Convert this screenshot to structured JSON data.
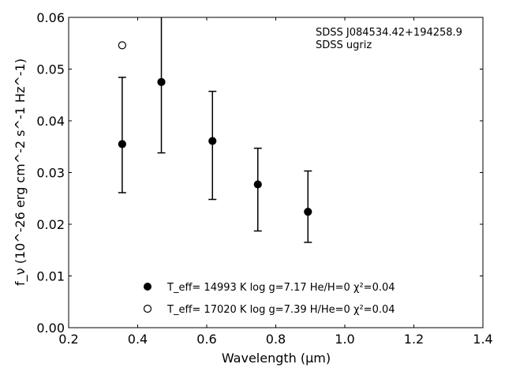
{
  "chart_data": {
    "type": "scatter",
    "xlabel": "Wavelength (μm)",
    "ylabel": "f_ν (10^-26 erg cm^-2 s^-1 Hz^-1)",
    "xlim": [
      0.2,
      1.4
    ],
    "ylim": [
      0.0,
      0.06
    ],
    "xticks": [
      "0.2",
      "0.4",
      "0.6",
      "0.8",
      "1.0",
      "1.2",
      "1.4"
    ],
    "yticks": [
      "0.00",
      "0.01",
      "0.02",
      "0.03",
      "0.04",
      "0.05",
      "0.06"
    ],
    "grid": false,
    "annotations": [
      "SDSS J084534.42+194258.9",
      "SDSS ugriz"
    ],
    "observed": {
      "x": [
        0.3551,
        0.4686,
        0.6166,
        0.748,
        0.8932
      ],
      "y": [
        0.0354,
        0.0475,
        0.036,
        0.0276,
        0.0223
      ],
      "err_low": [
        0.0261,
        0.0338,
        0.0248,
        0.0187,
        0.0165
      ],
      "err_high": [
        0.0484,
        0.0601,
        0.0457,
        0.0347,
        0.0303
      ]
    },
    "series": [
      {
        "marker": "filled-circle",
        "legend": "T_eff= 14993 K  log g=7.17  He/H=0  χ²=0.04",
        "x": [
          0.3551,
          0.4686,
          0.6166,
          0.748,
          0.8932
        ],
        "y": [
          0.0355,
          0.0475,
          0.0361,
          0.0277,
          0.0224
        ]
      },
      {
        "marker": "open-circle",
        "legend": "T_eff= 17020 K  log g=7.39  H/He=0  χ²=0.04",
        "x": [
          0.3551
        ],
        "y": [
          0.0546
        ]
      }
    ],
    "legend_position": "lower-center"
  }
}
